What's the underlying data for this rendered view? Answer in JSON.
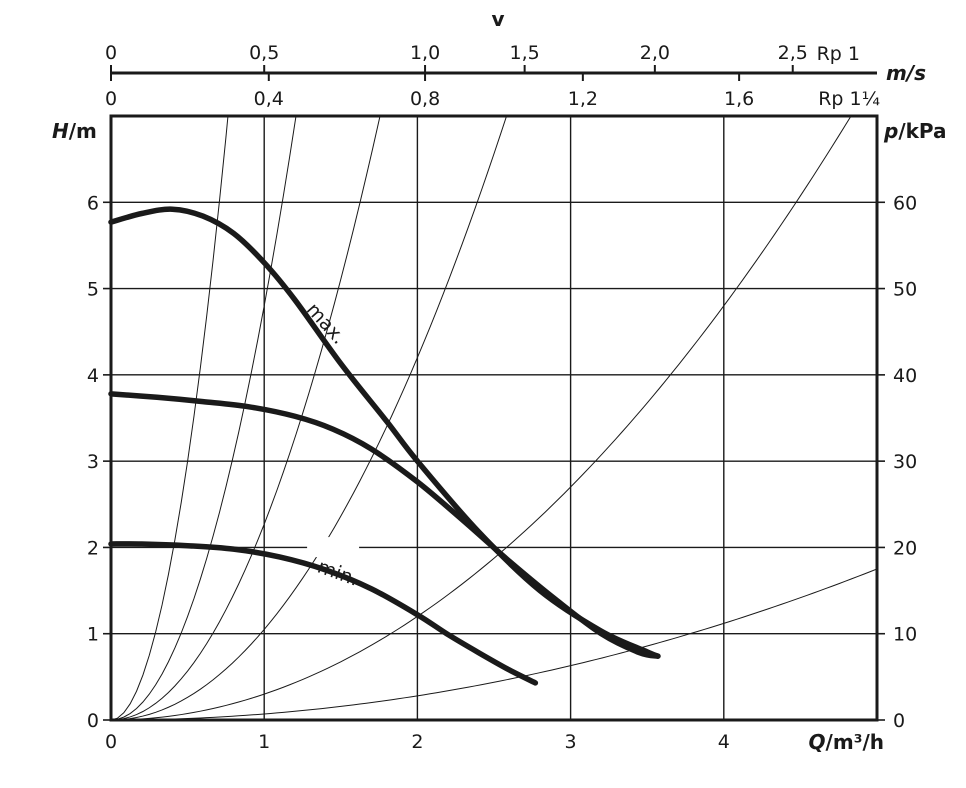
{
  "chart_data": {
    "type": "line",
    "x_axis": {
      "title_q": "Q",
      "title_unit": "/m³/h",
      "range": [
        0,
        5
      ],
      "ticks": [
        0,
        1,
        2,
        3,
        4
      ],
      "tick_labels": [
        "0",
        "1",
        "2",
        "3",
        "4"
      ]
    },
    "y_axis_left": {
      "title_h": "H",
      "title_unit": "/m",
      "range": [
        0,
        7
      ],
      "ticks": [
        0,
        1,
        2,
        3,
        4,
        5,
        6
      ],
      "tick_labels": [
        "0",
        "1",
        "2",
        "3",
        "4",
        "5",
        "6"
      ]
    },
    "y_axis_right": {
      "title_p": "p",
      "title_unit": "/kPa",
      "range": [
        0,
        70
      ],
      "ticks": [
        0,
        10,
        20,
        30,
        40,
        50,
        60
      ],
      "tick_labels": [
        "0",
        "10",
        "20",
        "30",
        "40",
        "50",
        "60"
      ]
    },
    "velocity_axis": {
      "title": "v",
      "unit": "m/s",
      "rp1": {
        "label": "Rp 1",
        "ticks": [
          0,
          0.5,
          1.0,
          1.5,
          2.0,
          2.5
        ],
        "tick_labels": [
          "0",
          "0,5",
          "1,0",
          "1,5",
          "2,0",
          "2,5"
        ],
        "q_positions": [
          0,
          1.0,
          2.05,
          2.7,
          3.55,
          4.45
        ]
      },
      "rp114": {
        "label": "Rp 1¼",
        "ticks": [
          0,
          0.4,
          0.8,
          1.2,
          1.6
        ],
        "tick_labels": [
          "0",
          "0,4",
          "0,8",
          "1,2",
          "1,6"
        ],
        "q_positions": [
          0,
          1.03,
          2.05,
          3.08,
          4.1
        ]
      }
    },
    "series": [
      {
        "name": "max.",
        "x": [
          0,
          0.2,
          0.4,
          0.6,
          0.8,
          1.0,
          1.2,
          1.5,
          1.8,
          2.0,
          2.4,
          2.8,
          3.2,
          3.5,
          3.57
        ],
        "y": [
          5.77,
          5.87,
          5.92,
          5.84,
          5.64,
          5.3,
          4.87,
          4.13,
          3.46,
          3.0,
          2.18,
          1.5,
          1.03,
          0.79,
          0.74
        ]
      },
      {
        "name": "",
        "x": [
          0,
          0.3,
          0.6,
          0.9,
          1.2,
          1.45,
          1.7,
          2.0,
          2.3,
          2.6,
          2.9,
          3.2,
          3.45,
          3.57
        ],
        "y": [
          3.78,
          3.74,
          3.69,
          3.63,
          3.52,
          3.37,
          3.14,
          2.76,
          2.31,
          1.84,
          1.4,
          1.0,
          0.78,
          0.74
        ]
      },
      {
        "name": "min.",
        "x": [
          0,
          0.2,
          0.5,
          0.8,
          1.1,
          1.4,
          1.7,
          2.0,
          2.2,
          2.4,
          2.6,
          2.77
        ],
        "y": [
          2.04,
          2.04,
          2.02,
          1.98,
          1.89,
          1.74,
          1.52,
          1.22,
          0.99,
          0.78,
          0.58,
          0.43
        ]
      }
    ],
    "system_curves_k": [
      12.0,
      4.8,
      2.27,
      1.05,
      0.3,
      0.07
    ],
    "grid": true
  }
}
